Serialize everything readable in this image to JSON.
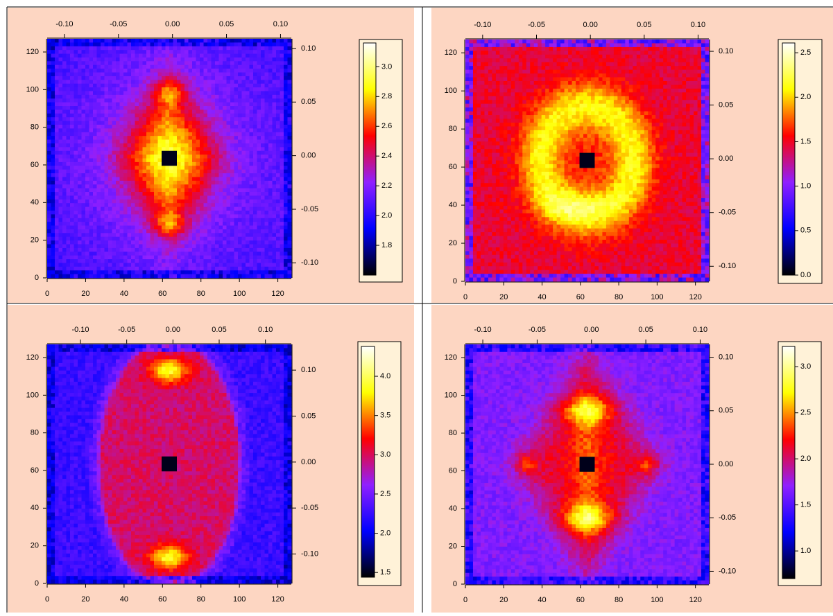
{
  "chart_data": [
    {
      "type": "heatmap",
      "xlim": [
        0,
        127
      ],
      "xticks": [
        0,
        20,
        40,
        60,
        80,
        100,
        120
      ],
      "ylim": [
        0,
        127
      ],
      "yticks": [
        0,
        20,
        40,
        60,
        80,
        100,
        120
      ],
      "x2lim": [
        -0.116,
        0.11
      ],
      "x2ticks": [
        {
          "value": -0.1,
          "label": "-0.10"
        },
        {
          "value": -0.05,
          "label": "-0.05"
        },
        {
          "value": 0,
          "label": "0.00"
        },
        0.05,
        {
          "value": 0.1,
          "label": "0.10"
        }
      ],
      "y2lim": [
        -0.114,
        0.109
      ],
      "y2ticks": [
        {
          "value": -0.1,
          "label": "-0.10"
        },
        {
          "value": -0.05,
          "label": "-0.05"
        },
        {
          "value": 0,
          "label": "0.00"
        },
        0.05,
        {
          "value": 0.1,
          "label": "0.10"
        }
      ],
      "colorbar": {
        "lim": [
          1.6,
          3.16
        ],
        "ticks": [
          1.8,
          {
            "value": 2,
            "label": "2.0"
          },
          2.2,
          2.4,
          2.6,
          2.8,
          {
            "value": 3,
            "label": "3.0"
          }
        ]
      },
      "colormap": [
        "#000000",
        "#0000ff",
        "#9020ff",
        "#ff0000",
        "#ffff00",
        "#ffffff"
      ]
    },
    {
      "type": "heatmap",
      "xlim": [
        0,
        127
      ],
      "xticks": [
        0,
        20,
        40,
        60,
        80,
        100,
        120
      ],
      "ylim": [
        0,
        127
      ],
      "yticks": [
        0,
        20,
        40,
        60,
        80,
        100,
        120
      ],
      "x2lim": [
        -0.116,
        0.11
      ],
      "x2ticks": [
        {
          "value": -0.1,
          "label": "-0.10"
        },
        {
          "value": -0.05,
          "label": "-0.05"
        },
        {
          "value": 0,
          "label": "0.00"
        },
        0.05,
        {
          "value": 0.1,
          "label": "0.10"
        }
      ],
      "y2lim": [
        -0.114,
        0.111
      ],
      "y2ticks": [
        {
          "value": -0.1,
          "label": "-0.10"
        },
        {
          "value": -0.05,
          "label": "-0.05"
        },
        {
          "value": 0,
          "label": "0.00"
        },
        0.05,
        {
          "value": 0.1,
          "label": "0.10"
        }
      ],
      "colorbar": {
        "lim": [
          0,
          2.61
        ],
        "ticks": [
          {
            "value": 0,
            "label": "0.0"
          },
          0.5,
          {
            "value": 1,
            "label": "1.0"
          },
          1.5,
          {
            "value": 2,
            "label": "2.0"
          },
          2.5
        ]
      },
      "colormap": [
        "#000000",
        "#0000ff",
        "#9020ff",
        "#ff0000",
        "#ffff00",
        "#ffffff"
      ]
    },
    {
      "type": "heatmap",
      "xlim": [
        0,
        127
      ],
      "xticks": [
        0,
        20,
        40,
        60,
        80,
        100,
        120
      ],
      "ylim": [
        0,
        127
      ],
      "yticks": [
        0,
        20,
        40,
        60,
        80,
        100,
        120
      ],
      "x2lim": [
        -0.136,
        0.128
      ],
      "x2ticks": [
        {
          "value": -0.1,
          "label": "-0.10"
        },
        {
          "value": -0.05,
          "label": "-0.05"
        },
        {
          "value": 0,
          "label": "0.00"
        },
        0.05,
        {
          "value": 0.1,
          "label": "0.10"
        }
      ],
      "y2lim": [
        -0.132,
        0.128
      ],
      "y2ticks": [
        {
          "value": -0.1,
          "label": "-0.10"
        },
        {
          "value": -0.05,
          "label": "-0.05"
        },
        {
          "value": 0,
          "label": "0.00"
        },
        0.05,
        {
          "value": 0.1,
          "label": "0.10"
        }
      ],
      "colorbar": {
        "lim": [
          1.44,
          4.38
        ],
        "ticks": [
          1.5,
          {
            "value": 2,
            "label": "2.0"
          },
          2.5,
          {
            "value": 3,
            "label": "3.0"
          },
          3.5,
          {
            "value": 4,
            "label": "4.0"
          }
        ]
      },
      "colormap": [
        "#000000",
        "#0000ff",
        "#9020ff",
        "#ff0000",
        "#ffff00",
        "#ffffff"
      ]
    },
    {
      "type": "heatmap",
      "xlim": [
        0,
        127
      ],
      "xticks": [
        0,
        20,
        40,
        60,
        80,
        100,
        120
      ],
      "ylim": [
        0,
        127
      ],
      "yticks": [
        0,
        20,
        40,
        60,
        80,
        100,
        120
      ],
      "x2lim": [
        -0.116,
        0.108
      ],
      "x2ticks": [
        {
          "value": -0.1,
          "label": "-0.10"
        },
        {
          "value": -0.05,
          "label": "-0.05"
        },
        {
          "value": 0,
          "label": "0.00"
        },
        0.05,
        {
          "value": 0.1,
          "label": "0.10"
        }
      ],
      "y2lim": [
        -0.112,
        0.112
      ],
      "y2ticks": [
        {
          "value": -0.1,
          "label": "-0.10"
        },
        {
          "value": -0.05,
          "label": "-0.05"
        },
        {
          "value": 0,
          "label": "0.00"
        },
        0.05,
        {
          "value": 0.1,
          "label": "0.10"
        }
      ],
      "colorbar": {
        "lim": [
          0.7,
          3.22
        ],
        "ticks": [
          {
            "value": 1,
            "label": "1.0"
          },
          1.5,
          {
            "value": 2,
            "label": "2.0"
          },
          2.5,
          {
            "value": 3,
            "label": "3.0"
          }
        ]
      },
      "colormap": [
        "#000000",
        "#0000ff",
        "#9020ff",
        "#ff0000",
        "#ffff00",
        "#ffffff"
      ]
    }
  ]
}
